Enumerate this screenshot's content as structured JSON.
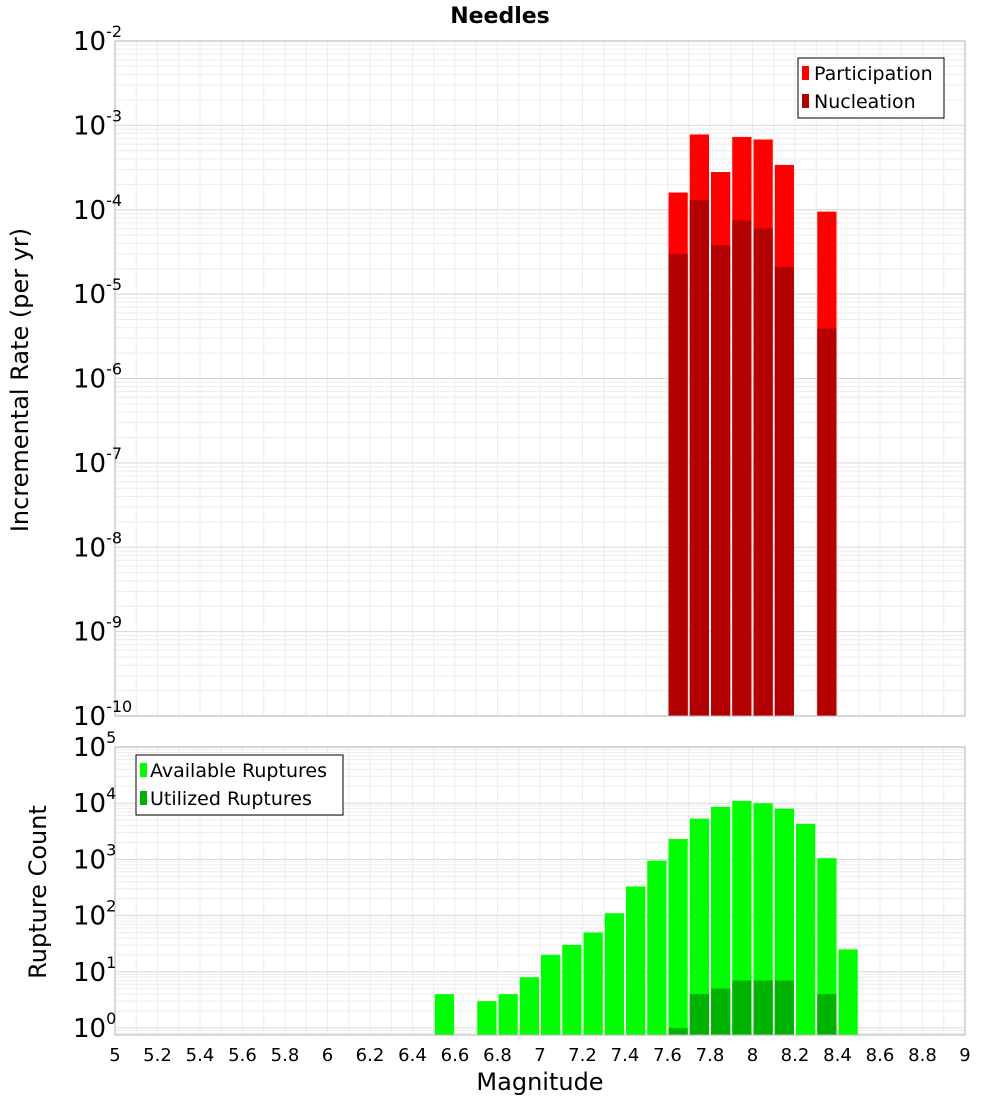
{
  "chart_data": [
    {
      "type": "bar",
      "title": "Needles",
      "xlabel": "Magnitude",
      "ylabel": "Incremental Rate (per yr)",
      "yscale": "log",
      "ylim": [
        1e-10,
        0.01
      ],
      "xlim": [
        5,
        9
      ],
      "bin_width": 0.1,
      "legend_position": "top-right",
      "x": [
        7.65,
        7.75,
        7.85,
        7.95,
        8.05,
        8.15,
        8.35
      ],
      "series": [
        {
          "name": "Participation",
          "color": "#ff0000",
          "values": [
            0.00016,
            0.00078,
            0.00028,
            0.00073,
            0.00068,
            0.00034,
            9.5e-05
          ]
        },
        {
          "name": "Nucleation",
          "color": "#b30000",
          "values": [
            3e-05,
            0.00013,
            3.8e-05,
            7.5e-05,
            6e-05,
            2.1e-05,
            3.9e-06
          ]
        }
      ],
      "ytick_exponents": [
        "-10",
        "-9",
        "-8",
        "-7",
        "-6",
        "-5",
        "-4",
        "-3",
        "-2"
      ]
    },
    {
      "type": "bar",
      "xlabel": "Magnitude",
      "ylabel": "Rupture Count",
      "yscale": "log",
      "ylim": [
        0.75,
        100000
      ],
      "xlim": [
        5,
        9
      ],
      "bin_width": 0.1,
      "legend_position": "top-left",
      "series": [
        {
          "name": "Available Ruptures",
          "color": "#00ff00",
          "x": [
            6.55,
            6.75,
            6.85,
            6.95,
            7.05,
            7.15,
            7.25,
            7.35,
            7.45,
            7.55,
            7.65,
            7.75,
            7.85,
            7.95,
            8.05,
            8.15,
            8.25,
            8.35,
            8.45
          ],
          "values": [
            4,
            3,
            4,
            8,
            20,
            30,
            50,
            110,
            330,
            950,
            2300,
            5300,
            8600,
            11000,
            10000,
            8000,
            4300,
            1050,
            25
          ]
        },
        {
          "name": "Utilized Ruptures",
          "color": "#00b300",
          "x": [
            7.65,
            7.75,
            7.85,
            7.95,
            8.05,
            8.15,
            8.35
          ],
          "values": [
            1,
            4,
            5,
            7,
            7,
            7,
            4
          ]
        }
      ],
      "ytick_exponents": [
        "0",
        "1",
        "2",
        "3",
        "4",
        "5"
      ]
    }
  ],
  "xtick_labels": [
    "5",
    "5.2",
    "5.4",
    "5.6",
    "5.8",
    "6",
    "6.2",
    "6.4",
    "6.6",
    "6.8",
    "7",
    "7.2",
    "7.4",
    "7.6",
    "7.8",
    "8",
    "8.2",
    "8.4",
    "8.6",
    "8.8",
    "9"
  ],
  "ytick_base": "10"
}
